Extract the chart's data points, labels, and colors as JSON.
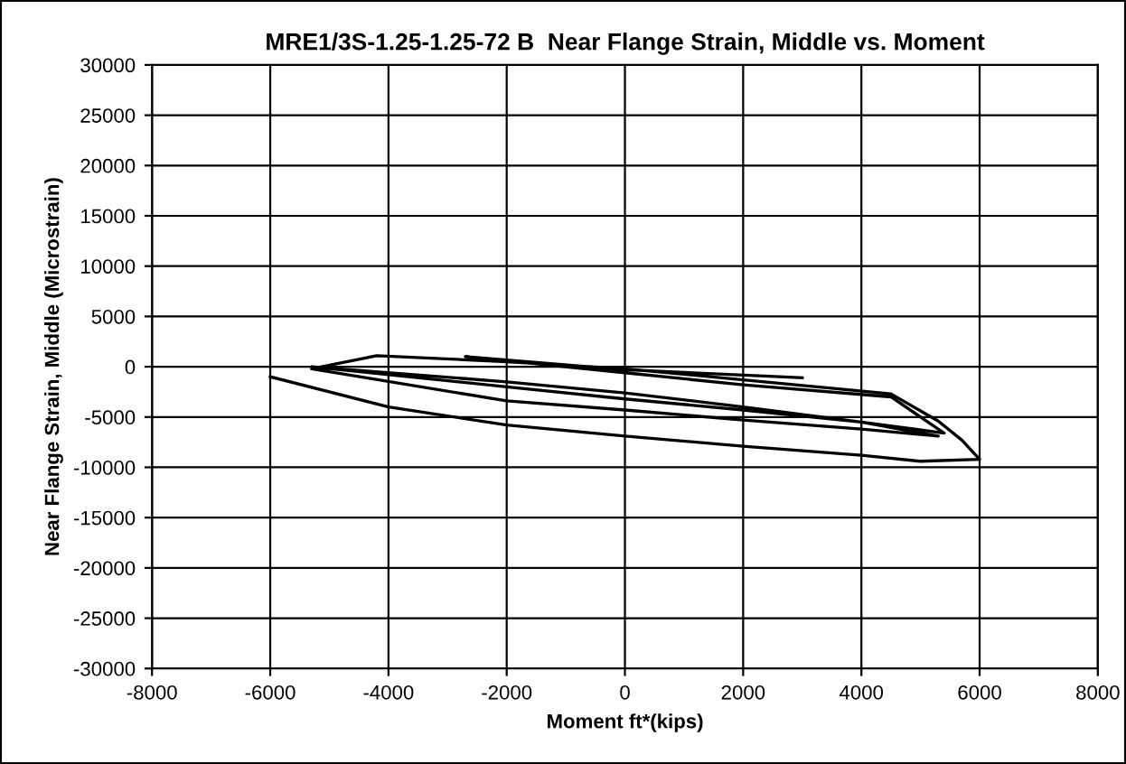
{
  "chart_data": {
    "type": "line",
    "title": "MRE1/3S-1.25-1.25-72 B  Near Flange Strain, Middle vs. Moment",
    "xlabel": "Moment ft*(kips)",
    "ylabel": "Near Flange Strain, Middle (Microstrain)",
    "series": [
      {
        "color": "#000000",
        "x": [
          -6000,
          -4000,
          -2000,
          0,
          2000,
          4000,
          5000,
          6000,
          5700,
          5300,
          4500,
          2000,
          0,
          -2000,
          -4200,
          -5300,
          -2000,
          0,
          2000,
          4000,
          5300,
          4000,
          2000,
          0,
          -2000,
          -5300,
          -2000,
          0,
          2000,
          4000,
          5400,
          4500,
          2000,
          0,
          -2700,
          0,
          3000
        ],
        "values": [
          -1000,
          -4000,
          -5800,
          -6900,
          -7900,
          -8800,
          -9400,
          -9200,
          -7300,
          -5400,
          -2700,
          -1300,
          -200,
          500,
          1100,
          -200,
          -3400,
          -4300,
          -5300,
          -6200,
          -6900,
          -5500,
          -4000,
          -2600,
          -1500,
          0,
          -2000,
          -3200,
          -4300,
          -5500,
          -6600,
          -3000,
          -1800,
          -600,
          1000,
          -300,
          -1100
        ]
      }
    ],
    "xlim": [
      -8000,
      8000
    ],
    "xticks": [
      -8000,
      -6000,
      -4000,
      -2000,
      0,
      2000,
      4000,
      6000,
      8000
    ],
    "ylim": [
      -30000,
      30000
    ],
    "yticks": [
      -30000,
      -25000,
      -20000,
      -15000,
      -10000,
      -5000,
      0,
      5000,
      10000,
      15000,
      20000,
      25000,
      30000
    ],
    "grid": true,
    "marker": "none",
    "line_style": "solid",
    "legend": false
  }
}
